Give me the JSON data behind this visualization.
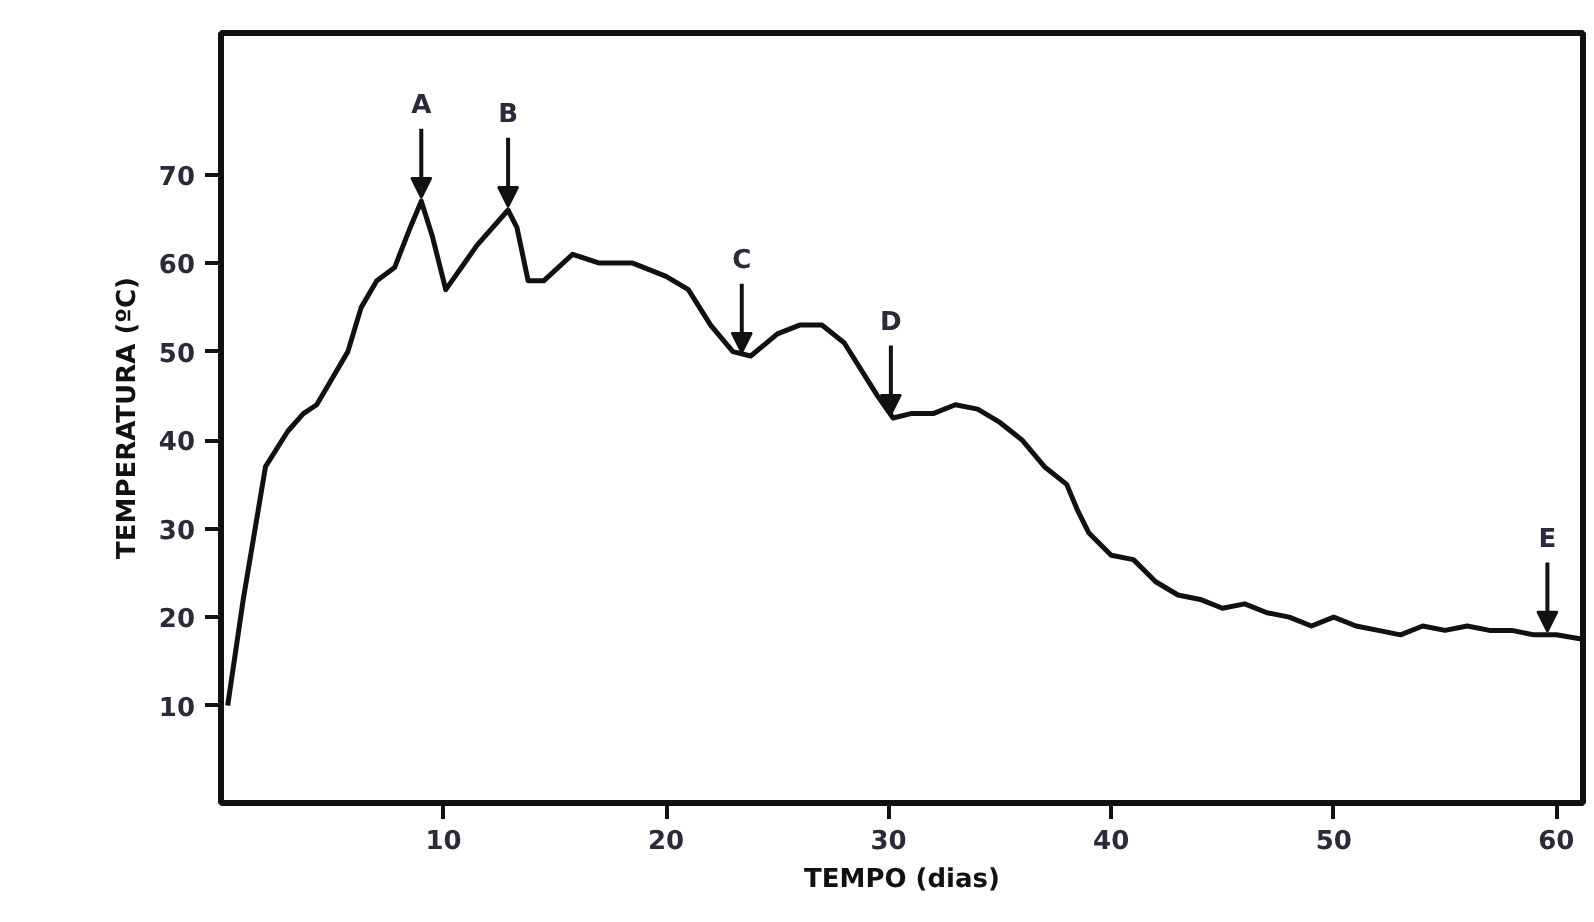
{
  "chart_data": {
    "type": "line",
    "xlabel": "TEMPO (dias)",
    "ylabel": "TEMPERATURA (ºC)",
    "xlim": [
      0,
      61.2
    ],
    "ylim": [
      -1,
      86
    ],
    "xticks": [
      10,
      20,
      30,
      40,
      50,
      60
    ],
    "yticks": [
      10,
      20,
      30,
      40,
      50,
      60,
      70
    ],
    "grid": false,
    "marker": "none",
    "line_style": "solid",
    "series": [
      {
        "color": "#111111",
        "x": [
          0.3,
          1,
          2,
          3,
          3.7,
          4.3,
          5,
          5.7,
          6.3,
          7,
          7.8,
          8.5,
          9,
          9.5,
          10.1,
          10.8,
          11.5,
          12.9,
          13.3,
          13.8,
          14.5,
          15.8,
          17,
          18.5,
          20,
          21,
          22,
          23,
          23.8,
          25,
          26,
          27,
          28,
          29.5,
          30.2,
          31,
          32,
          33,
          34,
          35,
          36,
          37,
          38,
          38.5,
          39,
          40,
          41,
          42,
          43,
          44,
          45,
          46,
          47,
          48,
          49,
          50,
          51,
          52,
          53,
          54,
          55,
          56,
          57,
          58,
          59,
          60,
          61.2
        ],
        "values": [
          10,
          22,
          37,
          41,
          43,
          44,
          47,
          50,
          55,
          58,
          59.5,
          64,
          67,
          63,
          57,
          59.5,
          62,
          66,
          64,
          58,
          58,
          61,
          60,
          60,
          58.5,
          57,
          53,
          50,
          49.5,
          52,
          53,
          53,
          51,
          45,
          42.5,
          43,
          43,
          44,
          43.5,
          42,
          40,
          37,
          35,
          32,
          29.5,
          27,
          26.5,
          24,
          22.5,
          22,
          21,
          21.5,
          20.5,
          20,
          19,
          20,
          19,
          18.5,
          18,
          19,
          18.5,
          19,
          18.5,
          18.5,
          18,
          18,
          17.5
        ]
      }
    ],
    "annotations": [
      {
        "text": "A",
        "x": 9,
        "y": 67
      },
      {
        "text": "B",
        "x": 12.9,
        "y": 66
      },
      {
        "text": "C",
        "x": 23.4,
        "y": 49.5
      },
      {
        "text": "D",
        "x": 30.1,
        "y": 42.5
      },
      {
        "text": "E",
        "x": 59.6,
        "y": 18
      }
    ]
  }
}
